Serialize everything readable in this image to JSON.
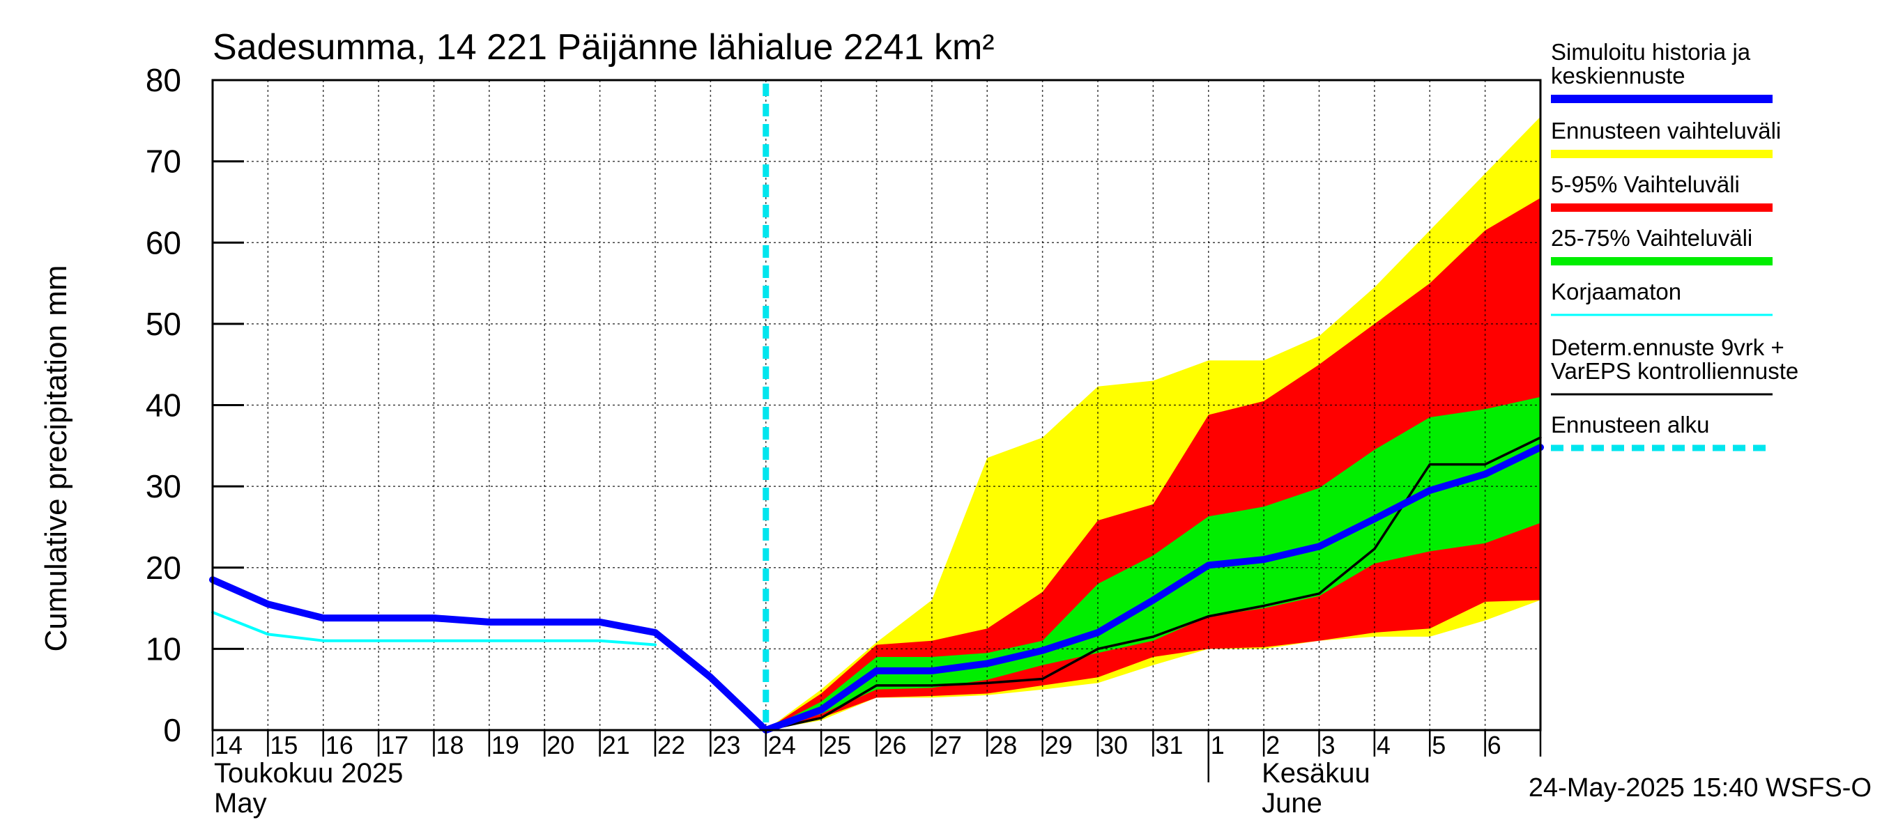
{
  "chart_data": {
    "type": "area",
    "title": "Sadesumma, 14 221 Päijänne lähialue 2241 km²",
    "ylabel": "Cumulative precipitation   mm",
    "ylim": [
      0,
      80
    ],
    "yticks": [
      0,
      10,
      20,
      30,
      40,
      50,
      60,
      70,
      80
    ],
    "grid": true,
    "legend_placement": "right",
    "x": [
      "2025-05-14",
      "2025-05-15",
      "2025-05-16",
      "2025-05-17",
      "2025-05-18",
      "2025-05-19",
      "2025-05-20",
      "2025-05-21",
      "2025-05-22",
      "2025-05-23",
      "2025-05-24",
      "2025-05-25",
      "2025-05-26",
      "2025-05-27",
      "2025-05-28",
      "2025-05-29",
      "2025-05-30",
      "2025-05-31",
      "2025-06-01",
      "2025-06-02",
      "2025-06-03",
      "2025-06-04",
      "2025-06-05",
      "2025-06-06",
      "2025-06-07"
    ],
    "xtick_labels": [
      "14",
      "15",
      "16",
      "17",
      "18",
      "19",
      "20",
      "21",
      "22",
      "23",
      "24",
      "25",
      "26",
      "27",
      "28",
      "29",
      "30",
      "31",
      "1",
      "2",
      "3",
      "4",
      "5",
      "6"
    ],
    "month_labels": [
      {
        "fi": "Toukokuu  2025",
        "en": "May"
      },
      {
        "fi": "Kesäkuu",
        "en": "June"
      }
    ],
    "forecast_start": "2025-05-24",
    "series": [
      {
        "name": "Simuloitu historia ja keskiennuste",
        "color": "#0000ff",
        "values": [
          18.5,
          15.5,
          13.8,
          13.8,
          13.8,
          13.3,
          13.3,
          13.3,
          12.0,
          6.5,
          0,
          2.5,
          7.3,
          7.3,
          8.2,
          9.8,
          12.0,
          16.0,
          20.3,
          21.0,
          22.6,
          26.0,
          29.5,
          31.5,
          34.8
        ]
      },
      {
        "name": "Korjaamaton",
        "color": "#00ffff",
        "values": [
          14.5,
          11.8,
          11.0,
          11.0,
          11.0,
          11.0,
          11.0,
          11.0,
          10.5,
          null,
          null,
          null,
          null,
          null,
          null,
          null,
          null,
          null,
          null,
          null,
          null,
          null,
          null,
          null,
          null
        ]
      },
      {
        "name": "Determ.ennuste 9vrk + VarEPS kontrolliennuste",
        "color": "#000000",
        "values": [
          null,
          null,
          null,
          null,
          null,
          null,
          null,
          null,
          null,
          null,
          0,
          1.5,
          5.5,
          5.5,
          5.8,
          6.3,
          10.0,
          11.5,
          14.0,
          15.3,
          16.8,
          22.3,
          32.7,
          32.7,
          36.0
        ]
      }
    ],
    "bands": [
      {
        "name": "Ennusteen vaihteluväli",
        "color": "#ffff00",
        "lower": [
          0,
          1.2,
          4.0,
          4.0,
          4.3,
          5.0,
          5.8,
          8.0,
          10.0,
          10.0,
          11.0,
          11.5,
          11.5,
          13.5,
          16.0
        ],
        "upper": [
          0,
          5.0,
          10.8,
          16.0,
          33.5,
          36.0,
          42.3,
          43.0,
          45.5,
          45.5,
          48.5,
          54.5,
          61.5,
          68.5,
          75.5
        ]
      },
      {
        "name": "5-95% Vaihteluväli",
        "color": "#ff0000",
        "lower": [
          0,
          1.5,
          4.0,
          4.2,
          4.5,
          5.5,
          6.5,
          9.0,
          10.0,
          10.2,
          11.0,
          12.0,
          12.5,
          15.8,
          16.0
        ],
        "upper": [
          0,
          4.5,
          10.5,
          11.0,
          12.5,
          17.0,
          25.8,
          27.8,
          38.8,
          40.5,
          45.0,
          50.0,
          55.0,
          61.5,
          65.5
        ]
      },
      {
        "name": "25-75% Vaihteluväli",
        "color": "#00ee00",
        "lower": [
          0,
          2.0,
          5.0,
          5.2,
          6.2,
          8.0,
          9.5,
          11.0,
          14.0,
          15.0,
          16.5,
          20.5,
          22.0,
          23.0,
          25.5
        ],
        "upper": [
          0,
          3.5,
          9.0,
          9.0,
          9.5,
          11.0,
          18.0,
          21.5,
          26.3,
          27.5,
          29.8,
          34.5,
          38.5,
          39.5,
          41.0
        ]
      }
    ],
    "legend_entries": [
      {
        "label": "Simuloitu historia ja keskiennuste",
        "color": "#0000ff",
        "style": "thick"
      },
      {
        "label": "Ennusteen vaihteluväli",
        "color": "#ffff00",
        "style": "thick"
      },
      {
        "label": "5-95% Vaihteluväli",
        "color": "#ff0000",
        "style": "thick"
      },
      {
        "label": "25-75% Vaihteluväli",
        "color": "#00ee00",
        "style": "thick"
      },
      {
        "label": "Korjaamaton",
        "color": "#00ffff",
        "style": "thin"
      },
      {
        "label": "Determ.ennuste 9vrk + VarEPS kontrolliennuste",
        "color": "#000000",
        "style": "thin"
      },
      {
        "label": "Ennusteen alku",
        "color": "#00e5ee",
        "style": "dashed"
      }
    ],
    "timestamp": "24-May-2025 15:40 WSFS-O"
  }
}
